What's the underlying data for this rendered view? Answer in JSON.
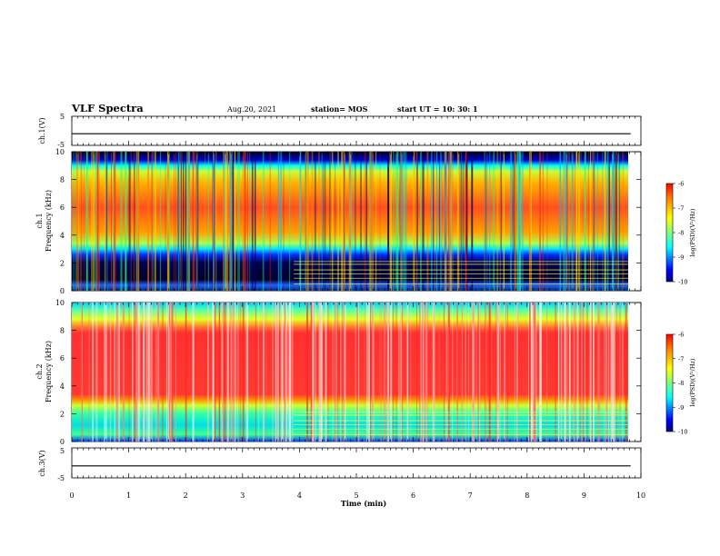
{
  "header": {
    "title": "VLF Spectra",
    "date": "Aug.20, 2021",
    "station": "station= MOS",
    "start": "start  UT  =   10: 30: 1"
  },
  "chart_data": [
    {
      "type": "line",
      "panel": "ch1-waveform",
      "ylabel": "ch.1(V)",
      "ylim": [
        -5,
        5
      ],
      "y_ticks": [
        "5",
        "-5"
      ],
      "baseline_value": -1,
      "xlim": [
        0,
        10
      ]
    },
    {
      "type": "heatmap",
      "panel": "ch1-spectrogram",
      "ylabel": "ch.1\nFrequency (kHz)",
      "ylim": [
        0,
        10
      ],
      "y_ticks": [
        "0",
        "2",
        "4",
        "6",
        "8",
        "10"
      ],
      "xlim": [
        0,
        10
      ],
      "colorbar": {
        "label": "log(PSD)(V²/Hz)",
        "ticks": [
          "-6",
          "-7",
          "-8",
          "-9",
          "-10"
        ],
        "range": [
          -10,
          -6
        ]
      }
    },
    {
      "type": "heatmap",
      "panel": "ch2-spectrogram",
      "ylabel": "ch.2\nFrequency (kHz)",
      "ylim": [
        0,
        10
      ],
      "y_ticks": [
        "0",
        "2",
        "4",
        "6",
        "8",
        "10"
      ],
      "xlim": [
        0,
        10
      ],
      "colorbar": {
        "label": "log(PSD)(V²/Hz)",
        "ticks": [
          "-6",
          "-7",
          "-8",
          "-9",
          "-10"
        ],
        "range": [
          -10,
          -6
        ]
      }
    },
    {
      "type": "line",
      "panel": "ch3-waveform",
      "ylabel": "ch.3(V)",
      "ylim": [
        -5,
        5
      ],
      "y_ticks": [
        "5",
        "-5"
      ],
      "baseline_value": -1,
      "xlim": [
        0,
        10
      ]
    }
  ],
  "xaxis": {
    "label": "Time  (min)",
    "ticks": [
      "0",
      "1",
      "2",
      "3",
      "4",
      "5",
      "6",
      "7",
      "8",
      "9",
      "10"
    ],
    "data_end": 9.82
  },
  "colors": {
    "jet": [
      "#00007f",
      "#0000ff",
      "#00ffff",
      "#7fff7f",
      "#ffff00",
      "#ff7f00",
      "#ff0000"
    ]
  }
}
